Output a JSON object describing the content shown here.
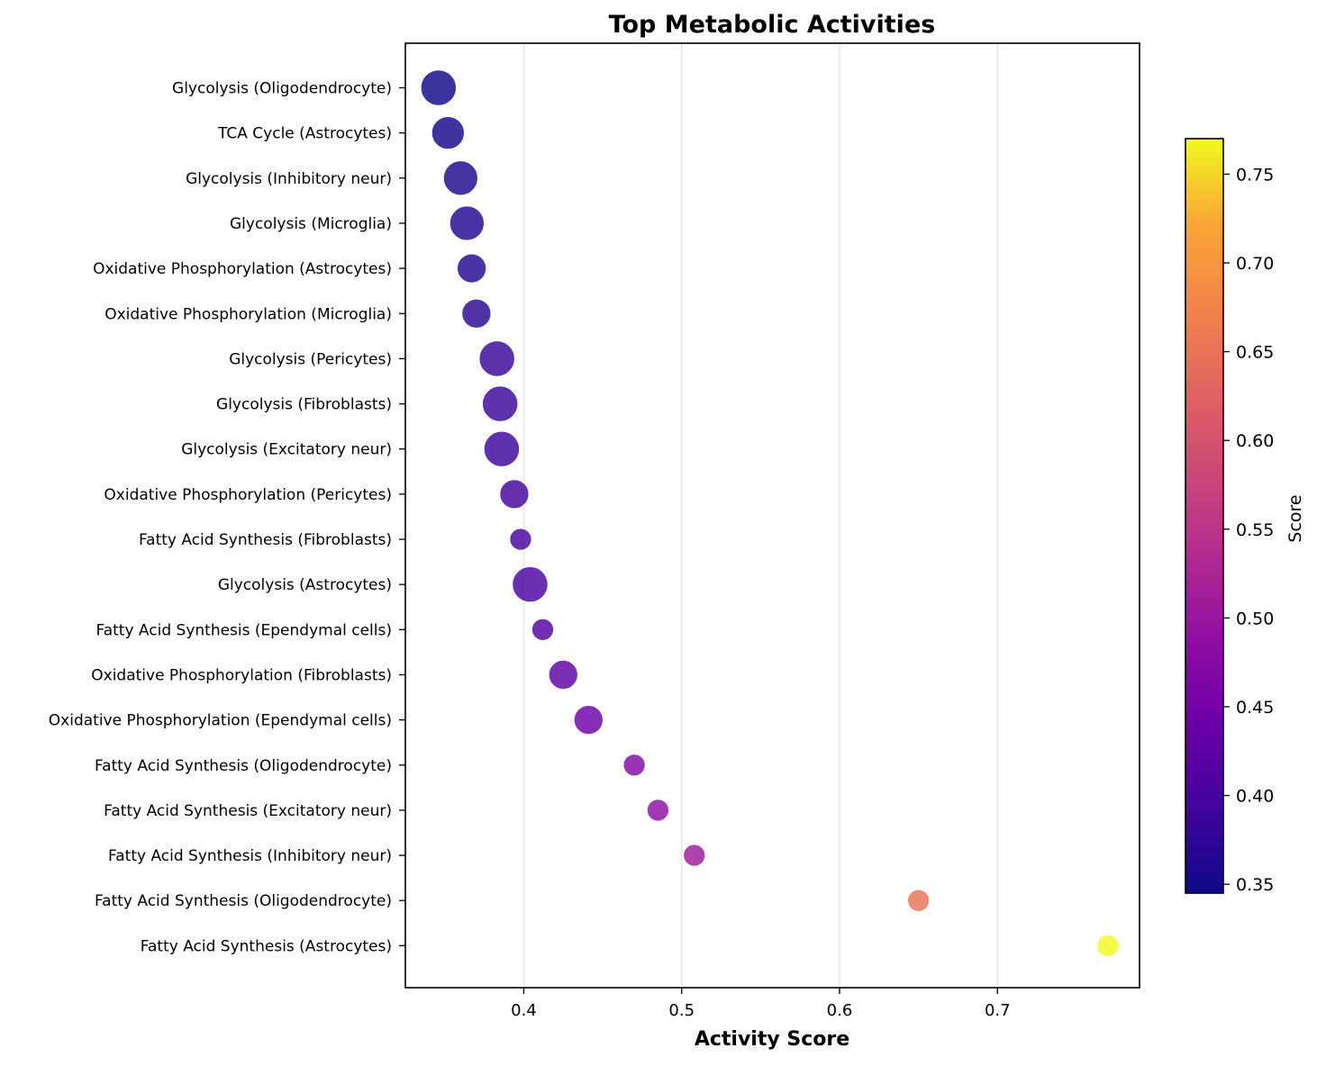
{
  "chart_data": {
    "type": "scatter",
    "title": "Top Metabolic Activities",
    "xlabel": "Activity Score",
    "ylabel": "",
    "xlim": [
      0.325,
      0.79
    ],
    "xticks": [
      0.4,
      0.5,
      0.6,
      0.7
    ],
    "grid": "vertical",
    "colormap": "plasma",
    "colorbar": {
      "label": "Score",
      "range": [
        0.345,
        0.77
      ],
      "ticks": [
        0.35,
        0.4,
        0.45,
        0.5,
        0.55,
        0.6,
        0.65,
        0.7,
        0.75
      ]
    },
    "points": [
      {
        "label": "Glycolysis (Oligodendrocyte)",
        "x": 0.346,
        "size": 1.0
      },
      {
        "label": "TCA Cycle (Astrocytes)",
        "x": 0.352,
        "size": 0.92
      },
      {
        "label": "Glycolysis (Inhibitory neur)",
        "x": 0.36,
        "size": 0.97
      },
      {
        "label": "Glycolysis (Microglia)",
        "x": 0.364,
        "size": 0.97
      },
      {
        "label": "Oxidative Phosphorylation (Astrocytes)",
        "x": 0.367,
        "size": 0.82
      },
      {
        "label": "Oxidative Phosphorylation (Microglia)",
        "x": 0.37,
        "size": 0.82
      },
      {
        "label": "Glycolysis (Pericytes)",
        "x": 0.383,
        "size": 1.0
      },
      {
        "label": "Glycolysis (Fibroblasts)",
        "x": 0.385,
        "size": 1.0
      },
      {
        "label": "Glycolysis (Excitatory neur)",
        "x": 0.386,
        "size": 1.0
      },
      {
        "label": "Oxidative Phosphorylation (Pericytes)",
        "x": 0.394,
        "size": 0.82
      },
      {
        "label": "Fatty Acid Synthesis (Fibroblasts)",
        "x": 0.398,
        "size": 0.62
      },
      {
        "label": "Glycolysis (Astrocytes)",
        "x": 0.404,
        "size": 1.0
      },
      {
        "label": "Fatty Acid Synthesis (Ependymal cells)",
        "x": 0.412,
        "size": 0.62
      },
      {
        "label": "Oxidative Phosphorylation (Fibroblasts)",
        "x": 0.425,
        "size": 0.82
      },
      {
        "label": "Oxidative Phosphorylation (Ependymal cells)",
        "x": 0.441,
        "size": 0.82
      },
      {
        "label": "Fatty Acid Synthesis (Oligodendrocyte)",
        "x": 0.47,
        "size": 0.62
      },
      {
        "label": "Fatty Acid Synthesis (Excitatory neur)",
        "x": 0.485,
        "size": 0.62
      },
      {
        "label": "Fatty Acid Synthesis (Inhibitory neur)",
        "x": 0.508,
        "size": 0.62
      },
      {
        "label": "Fatty Acid Synthesis (Oligodendrocyte)",
        "x": 0.65,
        "size": 0.62
      },
      {
        "label": "Fatty Acid Synthesis (Astrocytes)",
        "x": 0.77,
        "size": 0.62
      }
    ]
  }
}
